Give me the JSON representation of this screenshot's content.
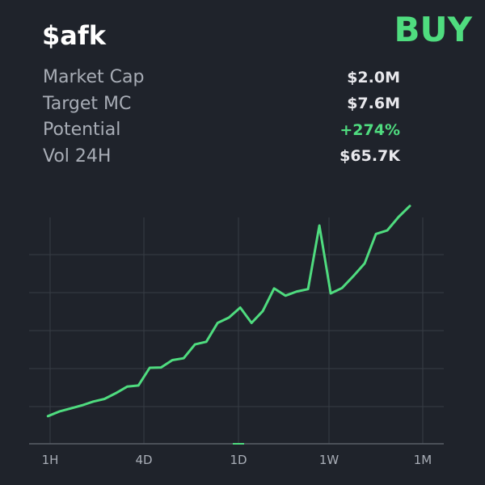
{
  "token": {
    "ticker": "$afk",
    "signal": "BUY"
  },
  "stats": [
    {
      "label": "Market Cap",
      "value": "$2.0M"
    },
    {
      "label": "Target MC",
      "value": "$7.6M"
    },
    {
      "label": "Potential",
      "value": "+274%",
      "color": "#4fdc7f"
    },
    {
      "label": "Vol 24H",
      "value": "$65.7K"
    }
  ],
  "colors": {
    "background": "#1f232b",
    "accent": "#4fdc7f",
    "grid": "#373c45",
    "axis": "#5a5f68",
    "label": "#a8adb6"
  },
  "timeframes": {
    "items": [
      "1H",
      "4D",
      "1D",
      "1W",
      "1M"
    ],
    "selected": "1D"
  },
  "chart_data": {
    "type": "line",
    "color": "#4fdc7f",
    "grid": true,
    "x": [
      0,
      3,
      6,
      9,
      12,
      15,
      18,
      21,
      24,
      27,
      30,
      33,
      36,
      39,
      42,
      45,
      48,
      51,
      54,
      57,
      60,
      63,
      66,
      69,
      72,
      75,
      78,
      81,
      84,
      87,
      90,
      93,
      96
    ],
    "y": [
      0.12,
      0.24,
      0.32,
      0.4,
      0.5,
      0.57,
      0.72,
      0.89,
      0.92,
      1.38,
      1.39,
      1.58,
      1.63,
      1.99,
      2.06,
      2.55,
      2.69,
      2.95,
      2.55,
      2.86,
      3.45,
      3.26,
      3.37,
      3.43,
      5.09,
      3.32,
      3.46,
      3.77,
      4.1,
      4.87,
      4.96,
      5.31,
      5.6
    ],
    "ylim": [
      -0.6,
      5.3
    ],
    "xlim": [
      -5,
      105
    ]
  }
}
